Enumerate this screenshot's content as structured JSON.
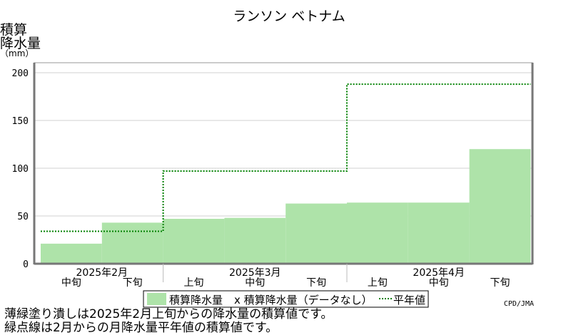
{
  "chart_data": {
    "type": "bar",
    "title": "ランソン ベトナム",
    "ylabel": [
      "積算",
      "降水量",
      "（mm）"
    ],
    "ylim": [
      0,
      200
    ],
    "yticks": [
      0,
      50,
      100,
      150,
      200
    ],
    "grid": true,
    "categories": [
      "2025年2月 中旬",
      "2025年2月 下旬",
      "2025年3月 上旬",
      "2025年3月 中旬",
      "2025年3月 下旬",
      "2025年4月 上旬",
      "2025年4月 中旬",
      "2025年4月 下旬"
    ],
    "month_labels": [
      "2025年2月",
      "2025年3月",
      "2025年4月"
    ],
    "decade_labels": [
      "中旬",
      "下旬",
      "上旬",
      "中旬",
      "下旬",
      "上旬",
      "中旬",
      "下旬"
    ],
    "series": [
      {
        "name": "積算降水量",
        "style": "filled-bar",
        "color": "#aee3a9",
        "values": [
          21,
          43,
          47,
          48,
          63,
          64,
          64,
          120
        ]
      },
      {
        "name": "平年値",
        "style": "dotted-step",
        "color": "#008000",
        "values": [
          34,
          34,
          97,
          97,
          97,
          188,
          188,
          188
        ]
      }
    ],
    "legend": {
      "position": "bottom",
      "items": [
        "積算降水量",
        "x 積算降水量（データなし）",
        "平年値"
      ]
    }
  },
  "source": "CPD/JMA",
  "notes": [
    "薄緑塗り潰しは2025年2月上旬からの降水量の積算値です。",
    "緑点線は2月からの月降水量平年値の積算値です。"
  ]
}
